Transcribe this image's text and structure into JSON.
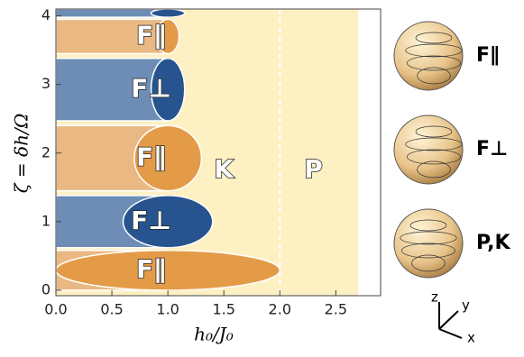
{
  "chart_data": {
    "type": "phase-diagram",
    "xlabel": "h₀/J₀",
    "ylabel": "ζ = δh/Ω",
    "xlim": [
      0,
      2.9
    ],
    "ylim": [
      -0.08,
      4.1
    ],
    "xticks": [
      {
        "value": 0,
        "label": "0.0"
      },
      {
        "value": 0.5,
        "label": "0.5"
      },
      {
        "value": 1,
        "label": "1.0"
      },
      {
        "value": 1.5,
        "label": "1.5"
      },
      {
        "value": 2,
        "label": "2.0"
      },
      {
        "value": 2.5,
        "label": "2.5"
      }
    ],
    "yticks": [
      0,
      1,
      2,
      3,
      4
    ],
    "background_extent": 2.7,
    "background_color": "#fdf0c3",
    "divider": 2,
    "bands": [
      {
        "name": "F∥",
        "ylim": [
          0,
          0.58
        ],
        "lobe": 2.0,
        "light": "#eab882",
        "dark": "#e49b48"
      },
      {
        "name": "F⊥",
        "ylim": [
          0.62,
          1.38
        ],
        "lobe": 1.4,
        "light": "#6d8db6",
        "dark": "#27548f"
      },
      {
        "name": "F∥",
        "ylim": [
          1.45,
          2.4
        ],
        "lobe": 1.3,
        "light": "#eab882",
        "dark": "#e49b48"
      },
      {
        "name": "F⊥",
        "ylim": [
          2.47,
          3.38
        ],
        "lobe": 1.15,
        "light": "#6d8db6",
        "dark": "#27548f"
      },
      {
        "name": "F∥",
        "ylim": [
          3.45,
          3.95
        ],
        "lobe": 1.1,
        "light": "#eab882",
        "dark": "#e49b48"
      },
      {
        "name": null,
        "ylim": [
          3.98,
          4.1
        ],
        "lobe": 1.15,
        "light": "#6d8db6",
        "dark": "#27548f"
      }
    ],
    "regions": [
      {
        "label": "K",
        "x": 1.5,
        "y": 1.75
      },
      {
        "label": "P",
        "x": 2.3,
        "y": 1.75
      }
    ]
  },
  "spheres": [
    {
      "label": "F∥"
    },
    {
      "label": "F⊥"
    },
    {
      "label": "P,K"
    }
  ],
  "axes_glyph": {
    "z": "z",
    "y": "y",
    "x": "x"
  }
}
